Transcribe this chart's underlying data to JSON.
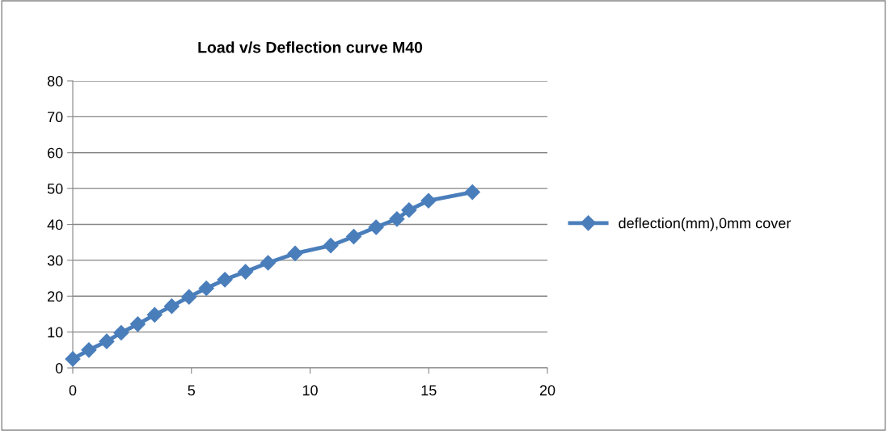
{
  "chart_data": {
    "type": "line",
    "title": "Load v/s Deflection curve M40",
    "x": [
      0,
      0.68,
      1.43,
      2.04,
      2.74,
      3.45,
      4.17,
      4.9,
      5.63,
      6.41,
      7.28,
      8.23,
      9.37,
      10.87,
      11.84,
      12.78,
      13.66,
      14.17,
      14.99,
      16.84
    ],
    "series": [
      {
        "name": "deflection(mm),0mm cover",
        "color": "#4a7ebb",
        "values": [
          2.5,
          5.0,
          7.4,
          9.8,
          12.2,
          14.8,
          17.2,
          19.8,
          22.2,
          24.6,
          26.8,
          29.3,
          31.9,
          34.1,
          36.6,
          39.2,
          41.5,
          44.0,
          46.6,
          49.0
        ]
      }
    ],
    "xlim": [
      0,
      20
    ],
    "xticks": [
      0,
      5,
      10,
      15,
      20
    ],
    "ylim": [
      0,
      80
    ],
    "yticks": [
      0,
      10,
      20,
      30,
      40,
      50,
      60,
      70,
      80
    ],
    "grid": "y",
    "legend": "right",
    "marker": "diamond",
    "line_style": "solid"
  }
}
